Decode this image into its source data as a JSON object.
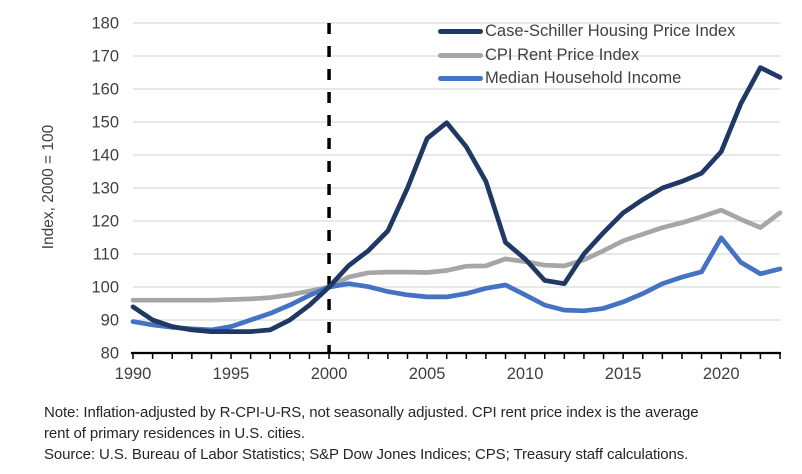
{
  "figure": {
    "ylabel": "Index, 2000 = 100",
    "notes": [
      "Note: Inflation-adjusted by R-CPI-U-RS, not seasonally adjusted. CPI rent price index is the average",
      "rent of primary residences in U.S. cities.",
      "Source: U.S. Bureau of Labor Statistics; S&P Dow Jones Indices; CPS; Treasury staff calculations."
    ]
  },
  "colors": {
    "gridline": "#d9d9d9",
    "axis": "#000000",
    "tick_text": "#404040",
    "note_text": "#262626",
    "case_schiller": "#1f3864",
    "cpi_rent": "#a6a6a6",
    "median_income": "#4472c4",
    "reference_line": "#000000"
  },
  "chart_data": {
    "type": "line",
    "title": "",
    "ylabel": "Index, 2000 = 100",
    "xlabel": "",
    "ylim": [
      80,
      180
    ],
    "ytick_step": 10,
    "xlim": [
      1990,
      2023
    ],
    "xticks": [
      1990,
      1995,
      2000,
      2005,
      2010,
      2015,
      2020
    ],
    "grid": "horizontal",
    "legend_position": "top-right",
    "x": [
      1990,
      1991,
      1992,
      1993,
      1994,
      1995,
      1996,
      1997,
      1998,
      1999,
      2000,
      2001,
      2002,
      2003,
      2004,
      2005,
      2006,
      2007,
      2008,
      2009,
      2010,
      2011,
      2012,
      2013,
      2014,
      2015,
      2016,
      2017,
      2018,
      2019,
      2020,
      2021,
      2022,
      2023
    ],
    "series": [
      {
        "id": "case-schiller-housing-price-index",
        "name": "Case-Schiller Housing Price Index",
        "color": "#1f3864",
        "z": 3,
        "values": [
          94,
          90,
          88,
          87,
          86.5,
          86.5,
          86.5,
          87,
          90,
          94.5,
          100,
          106.5,
          111,
          117,
          130,
          145,
          149.8,
          142.5,
          132,
          113.5,
          108.5,
          102,
          101,
          110,
          116.5,
          122.5,
          126.5,
          130,
          132,
          134.5,
          141,
          155.5,
          166.5,
          163.5
        ]
      },
      {
        "id": "cpi-rent-price-index",
        "name": "CPI Rent Price Index",
        "color": "#a6a6a6",
        "z": 1,
        "values": [
          96,
          96,
          96,
          96,
          96,
          96.2,
          96.4,
          96.8,
          97.6,
          98.8,
          100,
          103,
          104.3,
          104.5,
          104.5,
          104.4,
          105,
          106.3,
          106.4,
          108.5,
          107.7,
          106.6,
          106.4,
          108.2,
          111,
          114,
          116,
          118,
          119.5,
          121.3,
          123.3,
          120.5,
          118,
          122.5
        ]
      },
      {
        "id": "median-household-income",
        "name": "Median Household Income",
        "color": "#4472c4",
        "z": 2,
        "values": [
          89.5,
          88.5,
          87.8,
          87.3,
          87,
          88,
          90,
          92,
          94.5,
          97.5,
          100,
          101,
          100.1,
          98.6,
          97.6,
          97,
          97,
          98,
          99.6,
          100.6,
          97.6,
          94.5,
          93,
          92.8,
          93.5,
          95.5,
          98,
          101,
          103,
          104.6,
          114.9,
          107.5,
          104,
          105.5
        ]
      }
    ],
    "annotations": [
      {
        "type": "vline",
        "x": 2000,
        "style": "dashed",
        "color": "#000000"
      }
    ]
  }
}
